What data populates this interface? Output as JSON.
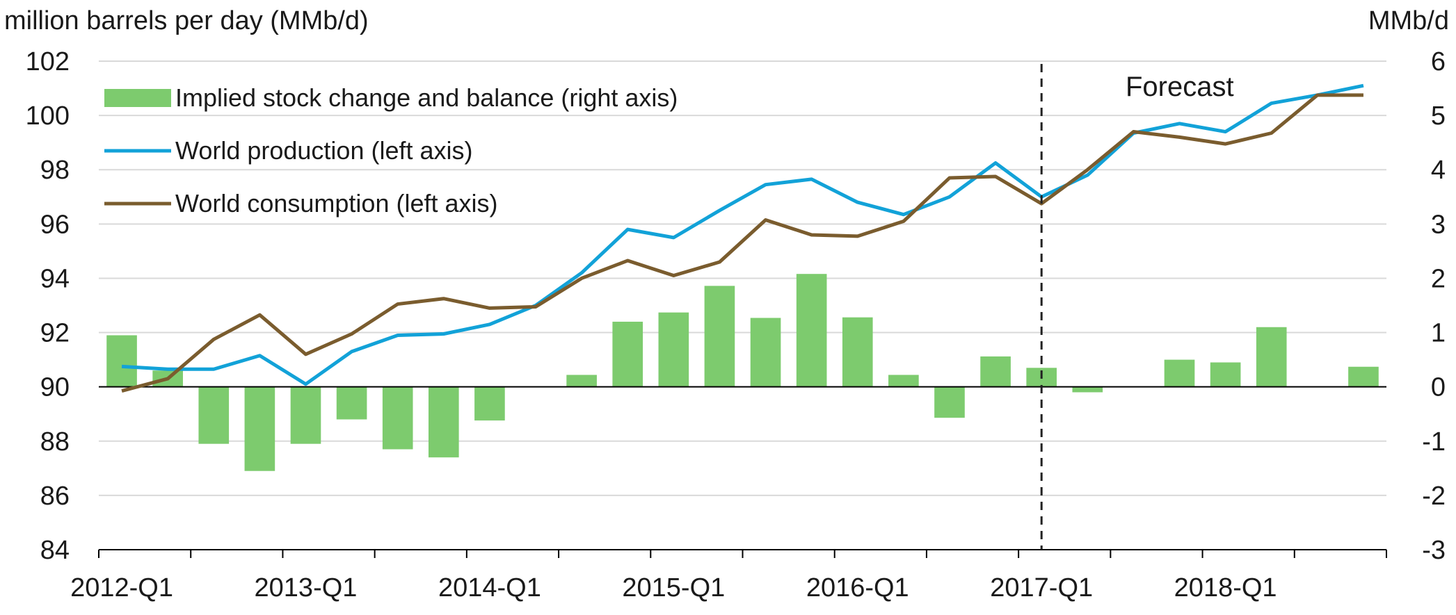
{
  "chart_data": {
    "type": "bar+line",
    "left_axis_label": "million barrels per day (MMb/d)",
    "right_axis_label": "MMb/d",
    "left_ylim": [
      84,
      102
    ],
    "left_ticks": [
      "84",
      "86",
      "88",
      "90",
      "92",
      "94",
      "96",
      "98",
      "100",
      "102"
    ],
    "right_ylim": [
      -3,
      6
    ],
    "right_ticks": [
      "-3",
      "-2",
      "-1",
      "0",
      "1",
      "2",
      "3",
      "4",
      "5",
      "6"
    ],
    "x_tick_labels": [
      "2012-Q1",
      "2013-Q1",
      "2014-Q1",
      "2015-Q1",
      "2016-Q1",
      "2017-Q1",
      "2018-Q1"
    ],
    "categories": [
      "2012-Q1",
      "2012-Q2",
      "2012-Q3",
      "2012-Q4",
      "2013-Q1",
      "2013-Q2",
      "2013-Q3",
      "2013-Q4",
      "2014-Q1",
      "2014-Q2",
      "2014-Q3",
      "2014-Q4",
      "2015-Q1",
      "2015-Q2",
      "2015-Q3",
      "2015-Q4",
      "2016-Q1",
      "2016-Q2",
      "2016-Q3",
      "2016-Q4",
      "2017-Q1",
      "2017-Q2",
      "2017-Q3",
      "2017-Q4",
      "2018-Q1",
      "2018-Q2",
      "2018-Q3",
      "2018-Q4"
    ],
    "series": [
      {
        "name": "Implied stock change and balance (right axis)",
        "kind": "bar",
        "axis": "right",
        "color": "#7dcb6e",
        "values": [
          0.95,
          0.3,
          -1.05,
          -1.55,
          -1.05,
          -0.6,
          -1.15,
          -1.3,
          -0.62,
          0,
          0.22,
          1.2,
          1.37,
          1.86,
          1.27,
          2.08,
          1.28,
          0.22,
          -0.57,
          0.56,
          0.35,
          -0.1,
          0,
          0.5,
          0.45,
          1.1,
          0,
          0.37
        ]
      },
      {
        "name": "World production (left axis)",
        "kind": "line",
        "axis": "left",
        "color": "#12a2d8",
        "values": [
          90.75,
          90.65,
          90.65,
          91.15,
          90.1,
          91.3,
          91.9,
          91.95,
          92.3,
          93.0,
          94.2,
          95.8,
          95.5,
          96.5,
          97.45,
          97.65,
          96.8,
          96.35,
          97.0,
          98.25,
          97.0,
          97.8,
          99.35,
          99.7,
          99.4,
          100.45,
          100.75,
          101.1
        ]
      },
      {
        "name": "World consumption (left axis)",
        "kind": "line",
        "axis": "left",
        "color": "#7a5c2e",
        "values": [
          89.85,
          90.3,
          91.75,
          92.65,
          91.2,
          91.95,
          93.05,
          93.25,
          92.9,
          92.95,
          94.0,
          94.65,
          94.1,
          94.6,
          96.15,
          95.6,
          95.55,
          96.1,
          97.7,
          97.75,
          96.75,
          98.0,
          99.4,
          99.2,
          98.95,
          99.35,
          100.75,
          100.75
        ]
      }
    ],
    "annotation": {
      "text": "Forecast",
      "divider_at": "2017-Q1"
    },
    "legend_placement": "top-left",
    "grid": true
  }
}
